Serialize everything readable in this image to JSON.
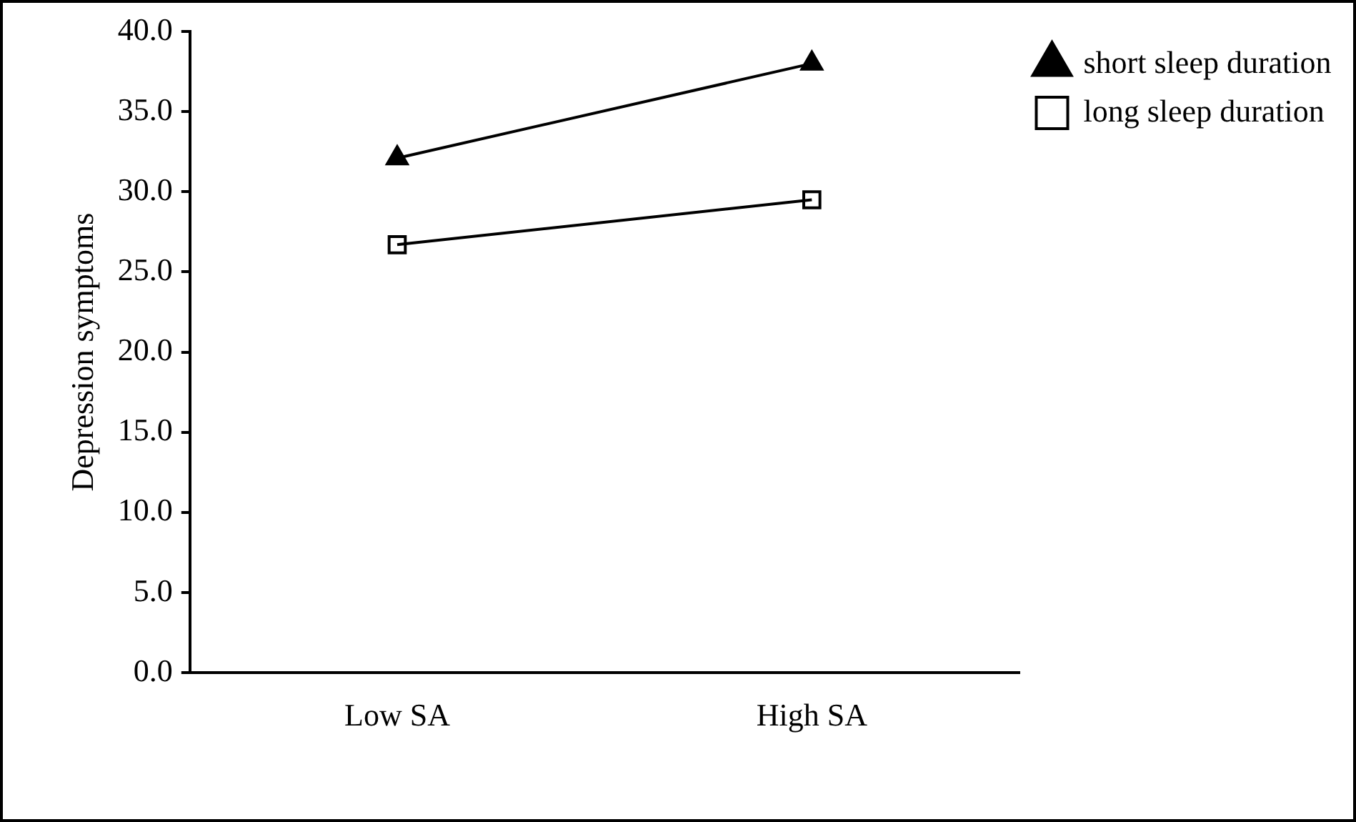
{
  "chart_data": {
    "type": "line",
    "ylabel": "Depression symptoms",
    "categories": [
      "Low SA",
      "High SA"
    ],
    "series": [
      {
        "name": "short sleep duration",
        "color": "#000000",
        "marker": "triangle",
        "values": [
          32.1,
          38.0
        ]
      },
      {
        "name": "long sleep duration",
        "color": "#000000",
        "marker": "square",
        "values": [
          26.7,
          29.5
        ]
      }
    ],
    "ylim": [
      0,
      40
    ],
    "yticks": [
      {
        "value": 0,
        "label": "0.0"
      },
      {
        "value": 5,
        "label": "5.0"
      },
      {
        "value": 10,
        "label": "10.0"
      },
      {
        "value": 15,
        "label": "15.0"
      },
      {
        "value": 20,
        "label": "20.0"
      },
      {
        "value": 25,
        "label": "25.0"
      },
      {
        "value": 30,
        "label": "30.0"
      },
      {
        "value": 35,
        "label": "35.0"
      },
      {
        "value": 40,
        "label": "40.0"
      }
    ],
    "grid": false,
    "legend": "top right",
    "line_style": "solid"
  }
}
